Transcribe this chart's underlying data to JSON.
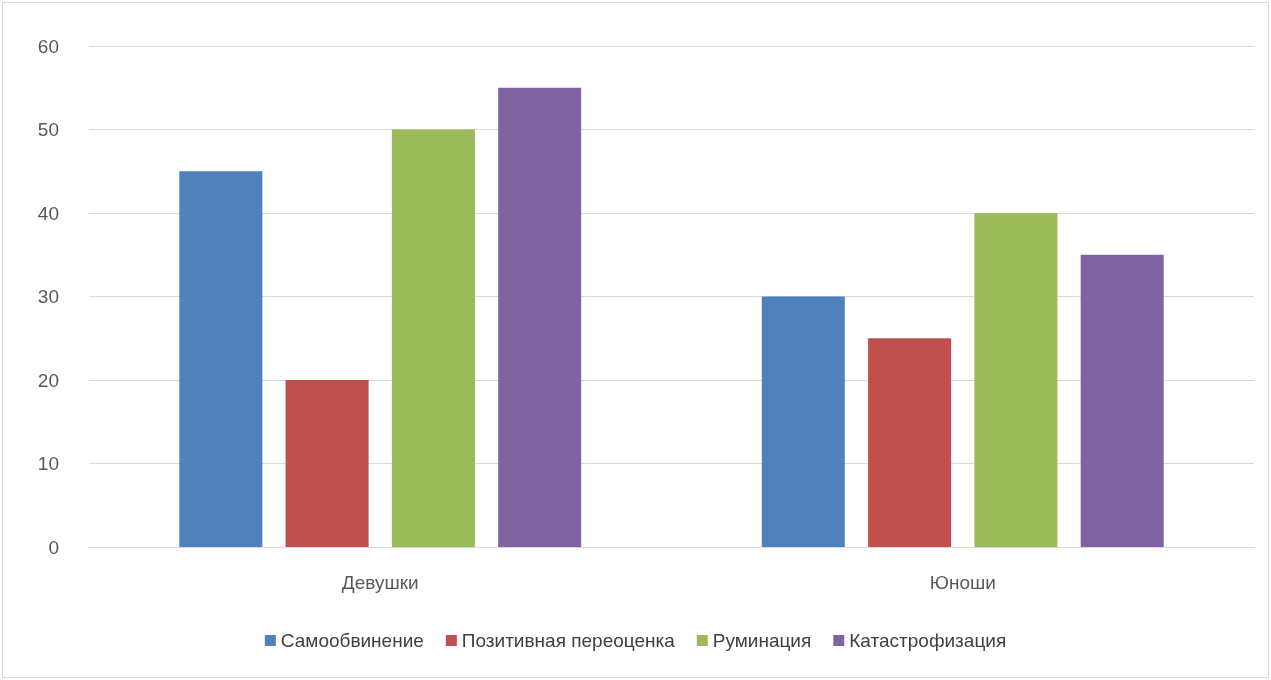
{
  "chart_data": {
    "type": "bar",
    "categories": [
      "Девушки",
      "Юноши"
    ],
    "series": [
      {
        "name": "Самообвинение",
        "color": "#4f81bd",
        "values": [
          45,
          30
        ]
      },
      {
        "name": "Позитивная переоценка",
        "color": "#c0504d",
        "values": [
          20,
          25
        ]
      },
      {
        "name": "Руминация",
        "color": "#9bbb59",
        "values": [
          50,
          40
        ]
      },
      {
        "name": "Катастрофизация",
        "color": "#8064a2",
        "values": [
          55,
          35
        ]
      }
    ],
    "ylim": [
      0,
      60
    ],
    "yticks": [
      0,
      10,
      20,
      30,
      40,
      50,
      60
    ],
    "grid": "y",
    "legend": "bottom"
  }
}
